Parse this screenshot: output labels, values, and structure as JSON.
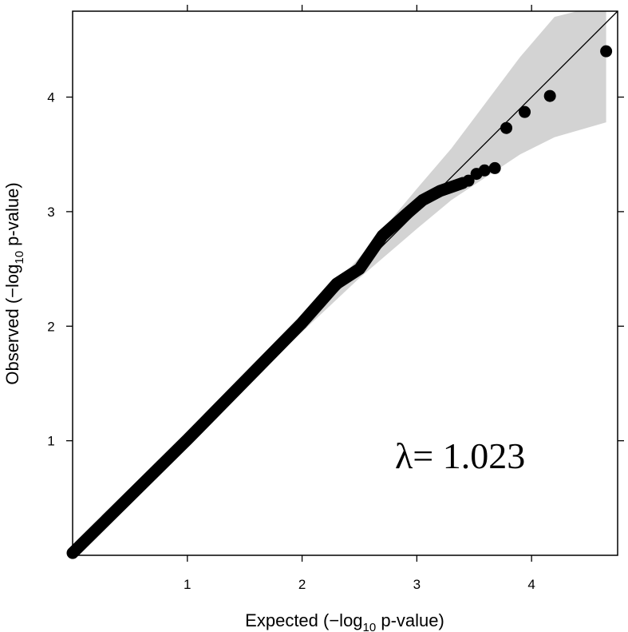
{
  "chart_data": {
    "type": "scatter",
    "xlabel": {
      "pre": "Expected (−log",
      "sub": "10",
      "post": " p-value)"
    },
    "ylabel": {
      "pre": "Observed (−log",
      "sub": "10",
      "post": " p-value)"
    },
    "xlim": [
      0,
      4.75
    ],
    "ylim": [
      0,
      4.75
    ],
    "x_ticks": [
      1,
      2,
      3,
      4
    ],
    "y_ticks": [
      1,
      2,
      3,
      4
    ],
    "x_tick_labels": [
      "1",
      "2",
      "3",
      "4"
    ],
    "y_tick_labels": [
      "1",
      "2",
      "3",
      "4"
    ],
    "grid": false,
    "annotation": "λ= 1.023",
    "reference_line": {
      "from": [
        0,
        0
      ],
      "to": [
        4.75,
        4.75
      ]
    },
    "confidence_band": {
      "upper": [
        [
          0,
          0
        ],
        [
          1.0,
          1.0
        ],
        [
          2.0,
          2.06
        ],
        [
          2.5,
          2.6
        ],
        [
          3.0,
          3.2
        ],
        [
          3.3,
          3.55
        ],
        [
          3.6,
          3.95
        ],
        [
          3.9,
          4.35
        ],
        [
          4.2,
          4.7
        ],
        [
          4.4,
          4.75
        ],
        [
          4.65,
          4.75
        ]
      ],
      "lower": [
        [
          0,
          0
        ],
        [
          1.0,
          1.0
        ],
        [
          2.0,
          1.95
        ],
        [
          2.5,
          2.42
        ],
        [
          3.0,
          2.85
        ],
        [
          3.3,
          3.1
        ],
        [
          3.6,
          3.3
        ],
        [
          3.9,
          3.5
        ],
        [
          4.2,
          3.65
        ],
        [
          4.65,
          3.78
        ]
      ]
    },
    "series": [
      {
        "color": "#000000",
        "bulk_curve": [
          [
            0,
            0.02
          ],
          [
            1.0,
            1.01
          ],
          [
            2.0,
            2.03
          ],
          [
            2.3,
            2.37
          ],
          [
            2.5,
            2.5
          ],
          [
            2.7,
            2.79
          ],
          [
            2.9,
            2.97
          ],
          [
            3.05,
            3.1
          ],
          [
            3.2,
            3.18
          ],
          [
            3.4,
            3.25
          ]
        ],
        "points": [
          {
            "x": 3.45,
            "y": 3.27
          },
          {
            "x": 3.52,
            "y": 3.33
          },
          {
            "x": 3.59,
            "y": 3.36
          },
          {
            "x": 3.68,
            "y": 3.38
          },
          {
            "x": 3.78,
            "y": 3.73
          },
          {
            "x": 3.94,
            "y": 3.87
          },
          {
            "x": 4.16,
            "y": 4.01
          },
          {
            "x": 4.65,
            "y": 4.4
          }
        ]
      }
    ],
    "colors": {
      "band": "#d3d3d3",
      "points": "#000000",
      "axes": "#000000"
    }
  }
}
